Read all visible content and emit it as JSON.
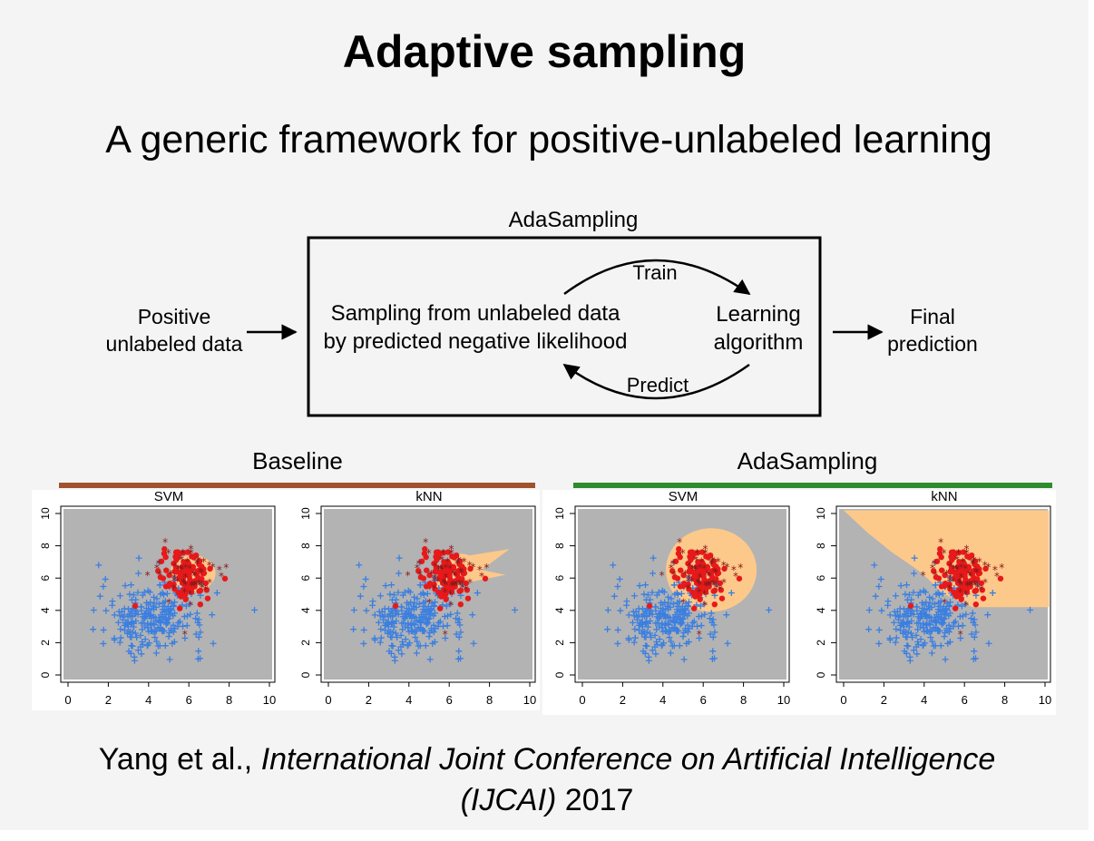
{
  "title": "Adaptive sampling",
  "subtitle": "A generic framework for positive-unlabeled learning",
  "diagram": {
    "box_title": "AdaSampling",
    "input_line1": "Positive",
    "input_line2": "unlabeled data",
    "center_line1": "Sampling from unlabeled data",
    "center_line2": "by predicted negative likelihood",
    "learner_line1": "Learning",
    "learner_line2": "algorithm",
    "train": "Train",
    "predict": "Predict",
    "output_line1": "Final",
    "output_line2": "prediction"
  },
  "groups": {
    "baseline": "Baseline",
    "adasampling": "AdaSampling",
    "baseline_color": "#a0522d",
    "adasampling_color": "#2e8b2e"
  },
  "panels": [
    {
      "title": "SVM",
      "group": "baseline"
    },
    {
      "title": "kNN",
      "group": "baseline"
    },
    {
      "title": "SVM",
      "group": "adasampling"
    },
    {
      "title": "kNN",
      "group": "adasampling"
    }
  ],
  "axis_ticks": [
    "0",
    "2",
    "4",
    "6",
    "8",
    "10"
  ],
  "colors": {
    "negative_region": "#b3b3b3",
    "positive_region": "#fdc98a",
    "unlabeled_points": "#3b7fe0",
    "positive_points": "#e8191b",
    "star_points": "#8b1a1a"
  },
  "footer": {
    "authors": "Yang et al., ",
    "venue": "International Joint Conference on Artificial Intelligence",
    "abbrev": "(IJCAI)",
    "year": " 2017"
  }
}
